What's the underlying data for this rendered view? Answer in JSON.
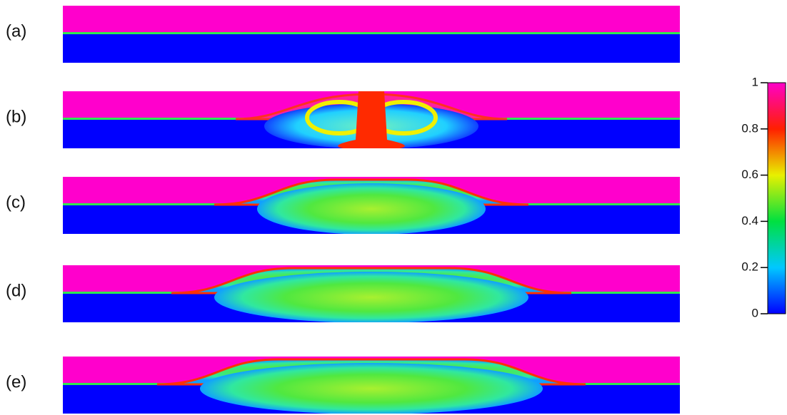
{
  "panels": [
    {
      "label": "(a)"
    },
    {
      "label": "(b)"
    },
    {
      "label": "(c)"
    },
    {
      "label": "(d)"
    },
    {
      "label": "(e)"
    }
  ],
  "colorbar": {
    "lim": [
      0,
      1
    ],
    "ticks": [
      0,
      0.2,
      0.4,
      0.6,
      0.8,
      1
    ]
  }
}
